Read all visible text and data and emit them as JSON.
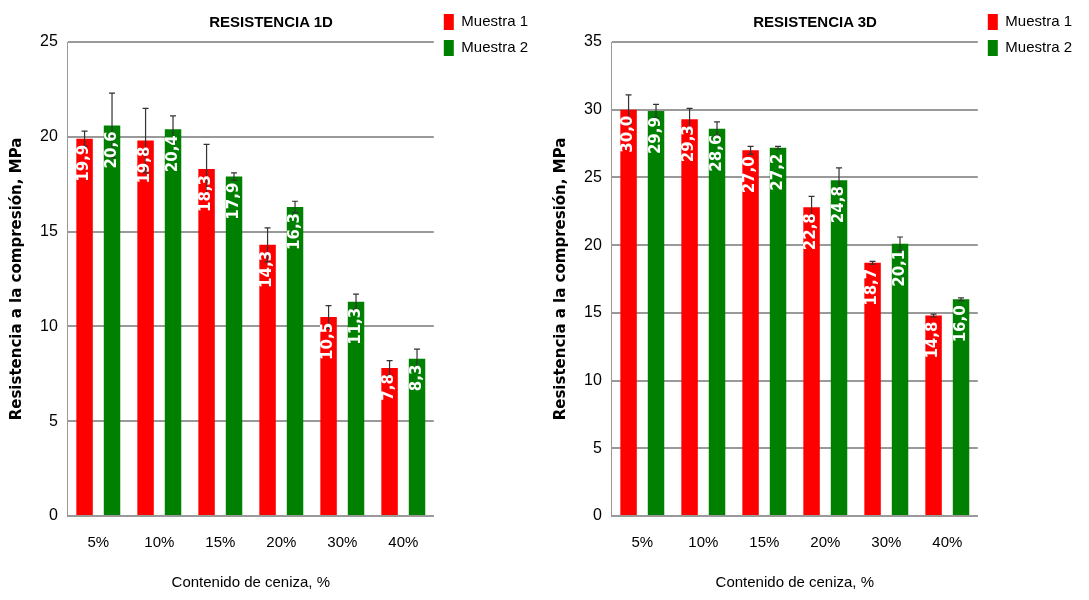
{
  "chart_data": [
    {
      "type": "bar",
      "title": "RESISTENCIA 1D",
      "xlabel": "Contenido de ceniza, %",
      "ylabel": "Resistencia a la compresión, MPa",
      "categories": [
        "5%",
        "10%",
        "15%",
        "20%",
        "30%",
        "40%"
      ],
      "series": [
        {
          "name": "Muestra 1",
          "color": "#ff0000",
          "values": [
            19.9,
            19.8,
            18.3,
            14.3,
            10.5,
            7.8
          ],
          "errors": [
            0.4,
            1.7,
            1.3,
            0.9,
            0.6,
            0.4
          ],
          "value_labels": [
            "19,9",
            "19,8",
            "18,3",
            "14,3",
            "10,5",
            "7,8"
          ]
        },
        {
          "name": "Muestra 2",
          "color": "#008000",
          "values": [
            20.6,
            20.4,
            17.9,
            16.3,
            11.3,
            8.3
          ],
          "errors": [
            1.7,
            0.7,
            0.2,
            0.3,
            0.4,
            0.5
          ],
          "value_labels": [
            "20,6",
            "20,4",
            "17,9",
            "16,3",
            "11,3",
            "8,3"
          ]
        }
      ],
      "ylim": [
        0,
        25
      ],
      "yticks": [
        0,
        5,
        10,
        15,
        20,
        25
      ],
      "grid": "y",
      "legend": "top right"
    },
    {
      "type": "bar",
      "title": "RESISTENCIA 3D",
      "xlabel": "Contenido de ceniza, %",
      "ylabel": "Resistencia a la compresión, MPa",
      "categories": [
        "5%",
        "10%",
        "15%",
        "20%",
        "30%",
        "40%"
      ],
      "series": [
        {
          "name": "Muestra 1",
          "color": "#ff0000",
          "values": [
            30.0,
            29.3,
            27.0,
            22.8,
            18.7,
            14.8
          ],
          "errors": [
            1.1,
            0.8,
            0.3,
            0.8,
            0.1,
            0.1
          ],
          "value_labels": [
            "30,0",
            "29,3",
            "27,0",
            "22,8",
            "18,7",
            "14,8"
          ]
        },
        {
          "name": "Muestra 2",
          "color": "#008000",
          "values": [
            29.9,
            28.6,
            27.2,
            24.8,
            20.1,
            16.0
          ],
          "errors": [
            0.5,
            0.5,
            0.1,
            0.9,
            0.5,
            0.1
          ],
          "value_labels": [
            "29,9",
            "28,6",
            "27,2",
            "24,8",
            "20,1",
            "16,0"
          ]
        }
      ],
      "ylim": [
        0,
        35
      ],
      "yticks": [
        0,
        5,
        10,
        15,
        20,
        25,
        30,
        35
      ],
      "grid": "y",
      "legend": "top right"
    }
  ]
}
